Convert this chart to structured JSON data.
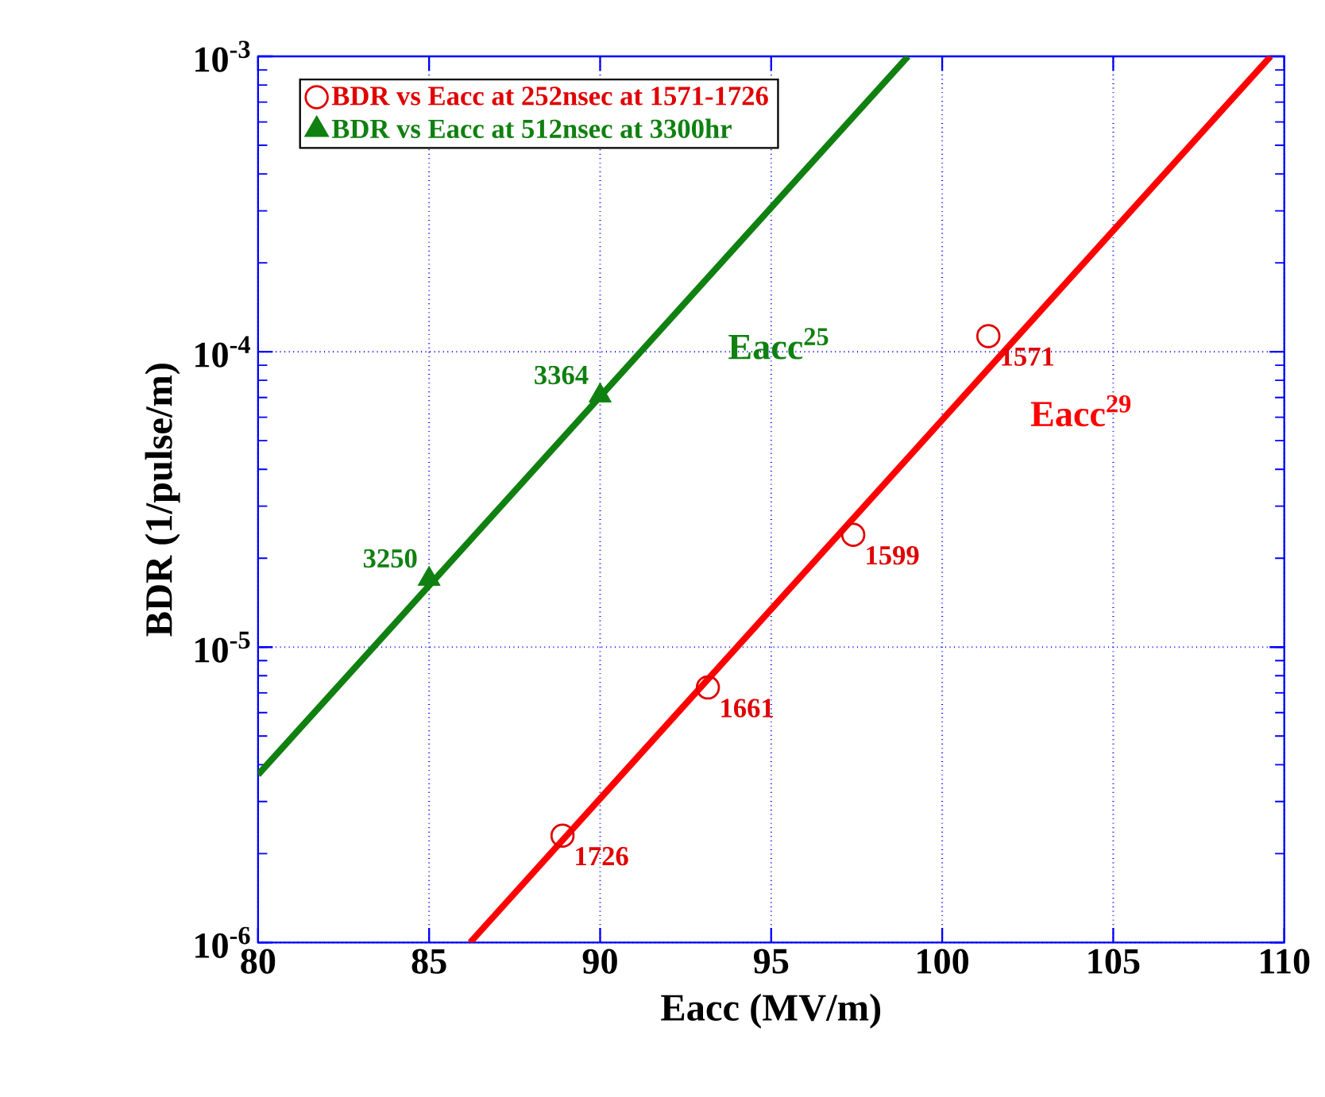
{
  "chart_data": {
    "type": "scatter",
    "xlabel": "Eacc (MV/m)",
    "ylabel": "BDR (1/pulse/m)",
    "xlim": [
      80,
      110
    ],
    "xticks": [
      80,
      85,
      90,
      95,
      100,
      105,
      110
    ],
    "ylim": [
      1e-06,
      0.001
    ],
    "yticks": [
      {
        "value": 1e-06,
        "label": "10$^{-6}$"
      },
      {
        "value": 1e-05,
        "label": "10$^{-5}$"
      },
      {
        "value": 0.0001,
        "label": "10$^{-4}$"
      },
      {
        "value": 0.001,
        "label": "10$^{-3}$"
      }
    ],
    "log": "y",
    "grid": true,
    "legend": "top left",
    "annotations": [
      {
        "text": "1571",
        "x": 101.35,
        "y": 0.000113
      },
      {
        "text": "1599",
        "x": 97.4,
        "y": 2.4e-05
      },
      {
        "text": "1661",
        "x": 93.15,
        "y": 7.3e-06
      },
      {
        "text": "1726",
        "x": 88.9,
        "y": 2.3e-06
      },
      {
        "text": "3364",
        "x": 90.0,
        "y": 7.1e-05
      },
      {
        "text": "3250",
        "x": 85.0,
        "y": 1.7e-05
      }
    ],
    "series": [
      {
        "name": "BDR vs Eacc at 252nsec at 1571-1726",
        "color": "#e00000",
        "marker": "circle",
        "x": [
          101.35,
          97.4,
          93.15,
          88.9
        ],
        "values": [
          0.000113,
          2.4e-05,
          7.3e-06,
          2.3e-06
        ]
      },
      {
        "name": "BDR vs Eacc at 512nsec at 3300hr",
        "color": "#108010",
        "marker": "triangle",
        "x": [
          90.0,
          85.0
        ],
        "values": [
          7.1e-05,
          1.7e-05
        ]
      },
      {
        "name": "Eacc$^{29}$",
        "type": "line",
        "color": "#ff0000",
        "x": [
          86.2,
          109.6
        ],
        "values": [
          1e-06,
          0.001
        ]
      },
      {
        "name": "Eacc$^{25}$",
        "type": "line",
        "color": "#108010",
        "x": [
          80,
          99.0
        ],
        "values": [
          3.7e-06,
          0.001
        ]
      }
    ]
  }
}
